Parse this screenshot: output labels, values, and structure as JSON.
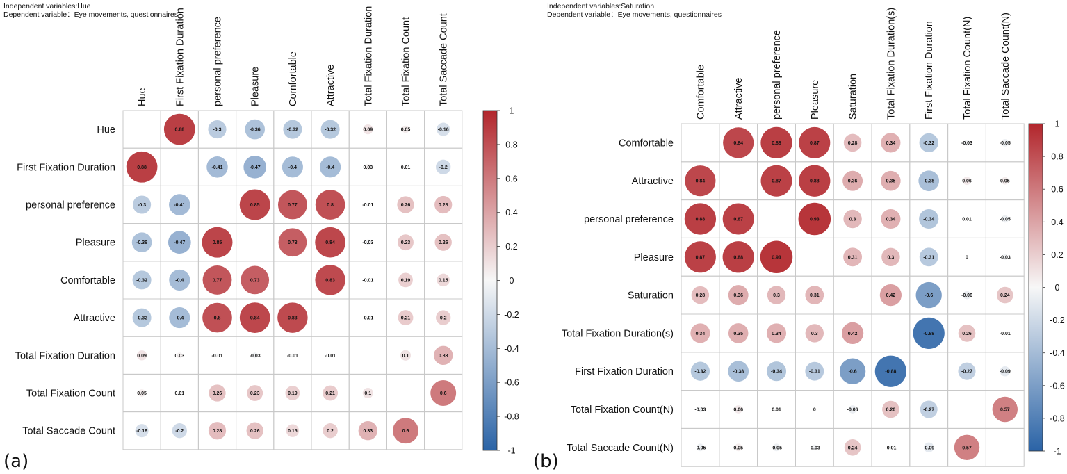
{
  "panels": [
    {
      "panel_label": "(a)",
      "header_line1": "Independent variables:Hue",
      "header_line2": "Dependent variable：Eye movements, questionnaires",
      "colorbar_ticks": [
        "1",
        "0.8",
        "0.6",
        "0.4",
        "0.2",
        "0",
        "-0.2",
        "-0.4",
        "-0.6",
        "-0.8",
        "-1"
      ],
      "colors": {
        "negative": "#2a63a6",
        "neutral": "#f7f7f7",
        "positive": "#b2262c",
        "grid": "#c8c8c8"
      },
      "chart_data": {
        "type": "heatmap",
        "style": "circle correlation matrix",
        "variables": [
          "Hue",
          "First Fixation Duration",
          "personal preference",
          "Pleasure",
          "Comfortable",
          "Attractive",
          "Total Fixation Duration",
          "Total Fixation Count",
          "Total Saccade Count"
        ],
        "matrix": [
          [
            null,
            0.88,
            -0.3,
            -0.36,
            -0.32,
            -0.32,
            0.09,
            0.05,
            -0.16
          ],
          [
            0.88,
            null,
            -0.41,
            -0.47,
            -0.4,
            -0.4,
            0.03,
            0.01,
            -0.2
          ],
          [
            -0.3,
            -0.41,
            null,
            0.85,
            0.77,
            0.8,
            -0.01,
            0.26,
            0.28
          ],
          [
            -0.36,
            -0.47,
            0.85,
            null,
            0.73,
            0.84,
            -0.03,
            0.23,
            0.26
          ],
          [
            -0.32,
            -0.4,
            0.77,
            0.73,
            null,
            0.83,
            -0.01,
            0.19,
            0.15
          ],
          [
            -0.32,
            -0.4,
            0.8,
            0.84,
            0.83,
            null,
            -0.01,
            0.21,
            0.2
          ],
          [
            0.09,
            0.03,
            -0.01,
            -0.03,
            -0.01,
            -0.01,
            null,
            0.1,
            0.33
          ],
          [
            0.05,
            0.01,
            0.26,
            0.23,
            0.19,
            0.21,
            0.1,
            null,
            0.6
          ],
          [
            -0.16,
            -0.2,
            0.28,
            0.26,
            0.15,
            0.2,
            0.33,
            0.6,
            null
          ]
        ],
        "color_range": [
          -1,
          1
        ],
        "legend": "colorbar right"
      }
    },
    {
      "panel_label": "(b)",
      "header_line1": "Independent variables:Saturation",
      "header_line2": "Dependent variable：Eye movements, questionnaires",
      "colorbar_ticks": [
        "1",
        "0.8",
        "0.6",
        "0.4",
        "0.2",
        "0",
        "-0.2",
        "-0.4",
        "-0.6",
        "-0.8",
        "-1"
      ],
      "colors": {
        "negative": "#2a63a6",
        "neutral": "#f7f7f7",
        "positive": "#b2262c",
        "grid": "#c8c8c8"
      },
      "chart_data": {
        "type": "heatmap",
        "style": "circle correlation matrix",
        "variables": [
          "Comfortable",
          "Attractive",
          "personal preference",
          "Pleasure",
          "Saturation",
          "Total Fixation Duration(s)",
          "First Fixation Duration",
          "Total Fixation Count(N)",
          "Total Saccade Count(N)"
        ],
        "matrix": [
          [
            null,
            0.84,
            0.88,
            0.87,
            0.28,
            0.34,
            -0.32,
            -0.03,
            -0.05
          ],
          [
            0.84,
            null,
            0.87,
            0.88,
            0.36,
            0.35,
            -0.38,
            0.06,
            0.05
          ],
          [
            0.88,
            0.87,
            null,
            0.93,
            0.3,
            0.34,
            -0.34,
            0.01,
            -0.05
          ],
          [
            0.87,
            0.88,
            0.93,
            null,
            0.31,
            0.3,
            -0.31,
            0,
            -0.03
          ],
          [
            0.28,
            0.36,
            0.3,
            0.31,
            null,
            0.42,
            -0.6,
            -0.06,
            0.24
          ],
          [
            0.34,
            0.35,
            0.34,
            0.3,
            0.42,
            null,
            -0.88,
            0.26,
            -0.01
          ],
          [
            -0.32,
            -0.38,
            -0.34,
            -0.31,
            -0.6,
            -0.88,
            null,
            -0.27,
            -0.09
          ],
          [
            -0.03,
            0.06,
            0.01,
            0,
            -0.06,
            0.26,
            -0.27,
            null,
            0.57
          ],
          [
            -0.05,
            0.05,
            -0.05,
            -0.03,
            0.24,
            -0.01,
            -0.09,
            0.57,
            null
          ]
        ],
        "color_range": [
          -1,
          1
        ],
        "legend": "colorbar right"
      }
    }
  ]
}
